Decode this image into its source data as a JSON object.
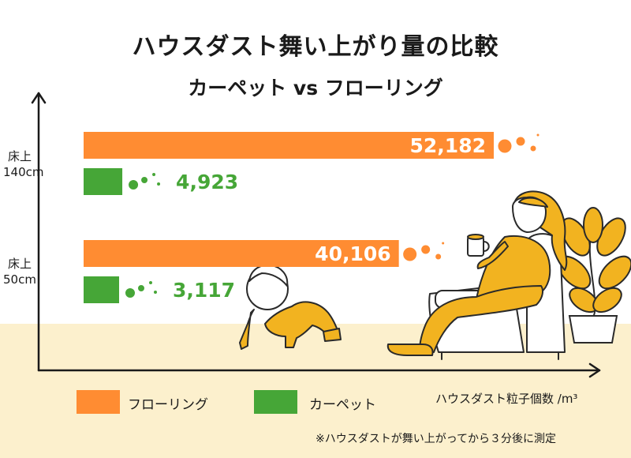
{
  "title": "ハウスダスト舞い上がり量の比較",
  "subtitle": "カーペット vs フローリング",
  "axis_unit": "ハウスダスト粒子個数 /m³",
  "footnote": "※ハウスダストが舞い上がってから３分後に測定",
  "colors": {
    "flooring": "#ff8c32",
    "carpet": "#46a637",
    "floor_bg": "#fcf0cd",
    "axis": "#1a1a1a",
    "person": "#f2b320"
  },
  "icons": [
    "baby-icon",
    "woman-in-armchair-icon",
    "potted-plant-icon",
    "coffee-mug-icon",
    "slippers-icon",
    "dust-particles-icon"
  ],
  "chart_data": {
    "type": "bar",
    "orientation": "horizontal",
    "title": "ハウスダスト舞い上がり量の比較",
    "subtitle": "カーペット vs フローリング",
    "xlabel": "ハウスダスト粒子個数 /m³",
    "ylabel": "",
    "categories": [
      {
        "line1": "床上",
        "line2": "140cm"
      },
      {
        "line1": "床上",
        "line2": "50cm"
      }
    ],
    "series": [
      {
        "name": "フローリング",
        "values": [
          52182,
          40106
        ],
        "labels": [
          "52,182",
          "40,106"
        ]
      },
      {
        "name": "カーペット",
        "values": [
          4923,
          3117
        ],
        "labels": [
          "4,923",
          "3,117"
        ]
      }
    ],
    "xlim": [
      0,
      60000
    ],
    "grid": false,
    "legend_position": "bottom-left"
  }
}
